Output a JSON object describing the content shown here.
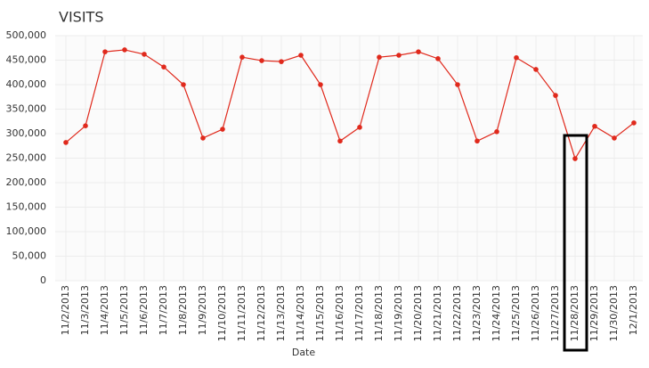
{
  "chart_data": {
    "type": "line",
    "title": "VISITS",
    "x_label": "Date",
    "categories": [
      "11/2/2013",
      "11/3/2013",
      "11/4/2013",
      "11/5/2013",
      "11/6/2013",
      "11/7/2013",
      "11/8/2013",
      "11/9/2013",
      "11/10/2013",
      "11/11/2013",
      "11/12/2013",
      "11/13/2013",
      "11/14/2013",
      "11/15/2013",
      "11/16/2013",
      "11/17/2013",
      "11/18/2013",
      "11/19/2013",
      "11/20/2013",
      "11/21/2013",
      "11/22/2013",
      "11/23/2013",
      "11/24/2013",
      "11/25/2013",
      "11/26/2013",
      "11/27/2013",
      "11/28/2013",
      "11/29/2013",
      "11/30/2013",
      "12/1/2013"
    ],
    "series": [
      {
        "color": "#e0291c",
        "values": [
          282000,
          316000,
          467000,
          471000,
          462000,
          436000,
          400000,
          291000,
          309000,
          456000,
          449000,
          447000,
          460000,
          400000,
          285000,
          313000,
          456000,
          460000,
          467000,
          453000,
          400000,
          285000,
          304000,
          455000,
          431000,
          378000,
          249000,
          315000,
          291000,
          322000
        ]
      }
    ],
    "ylim": [
      0,
      500000
    ],
    "yticks": [
      {
        "value": 0,
        "label": "0"
      },
      {
        "value": 50000,
        "label": "50,000"
      },
      {
        "value": 100000,
        "label": "100,000"
      },
      {
        "value": 150000,
        "label": "150,000"
      },
      {
        "value": 200000,
        "label": "200,000"
      },
      {
        "value": 250000,
        "label": "250,000"
      },
      {
        "value": 300000,
        "label": "300,000"
      },
      {
        "value": 350000,
        "label": "350,000"
      },
      {
        "value": 400000,
        "label": "400,000"
      },
      {
        "value": 450000,
        "label": "450,000"
      },
      {
        "value": 500000,
        "label": "500,000"
      }
    ],
    "grid": true
  }
}
